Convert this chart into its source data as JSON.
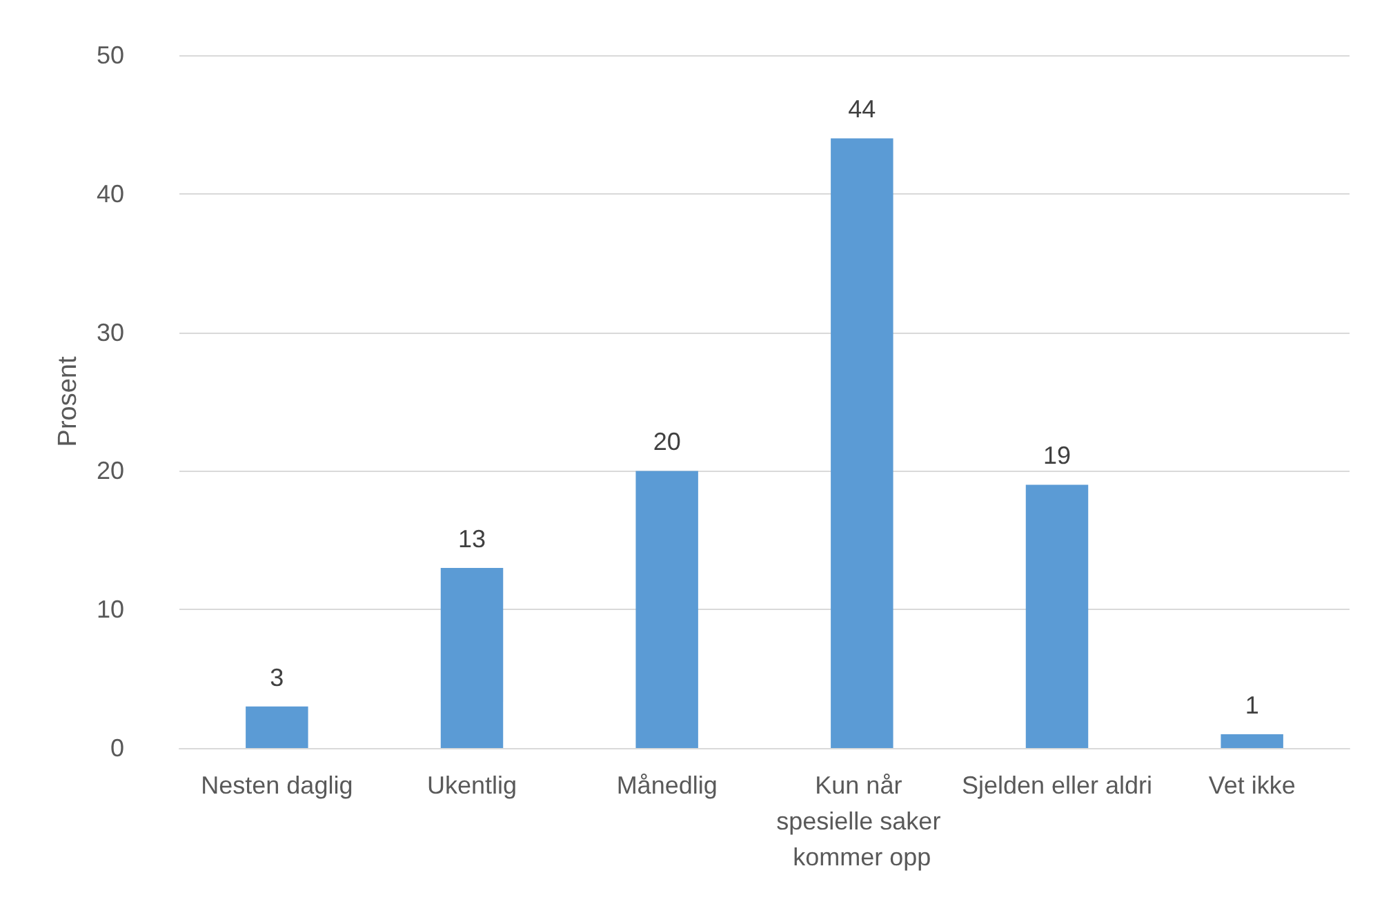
{
  "chart_data": {
    "type": "bar",
    "ylabel": "Prosent",
    "categories": [
      "Nesten daglig",
      "Ukentlig",
      "Månedlig",
      "Kun når spesielle saker kommer opp",
      "Sjelden eller aldri",
      "Vet ikke"
    ],
    "values": [
      3,
      13,
      20,
      44,
      19,
      1
    ],
    "color": "#5b9bd5",
    "ylim": [
      0,
      50
    ],
    "yticks": [
      0,
      10,
      20,
      30,
      40,
      50
    ],
    "grid": "y",
    "data_labels": true
  }
}
